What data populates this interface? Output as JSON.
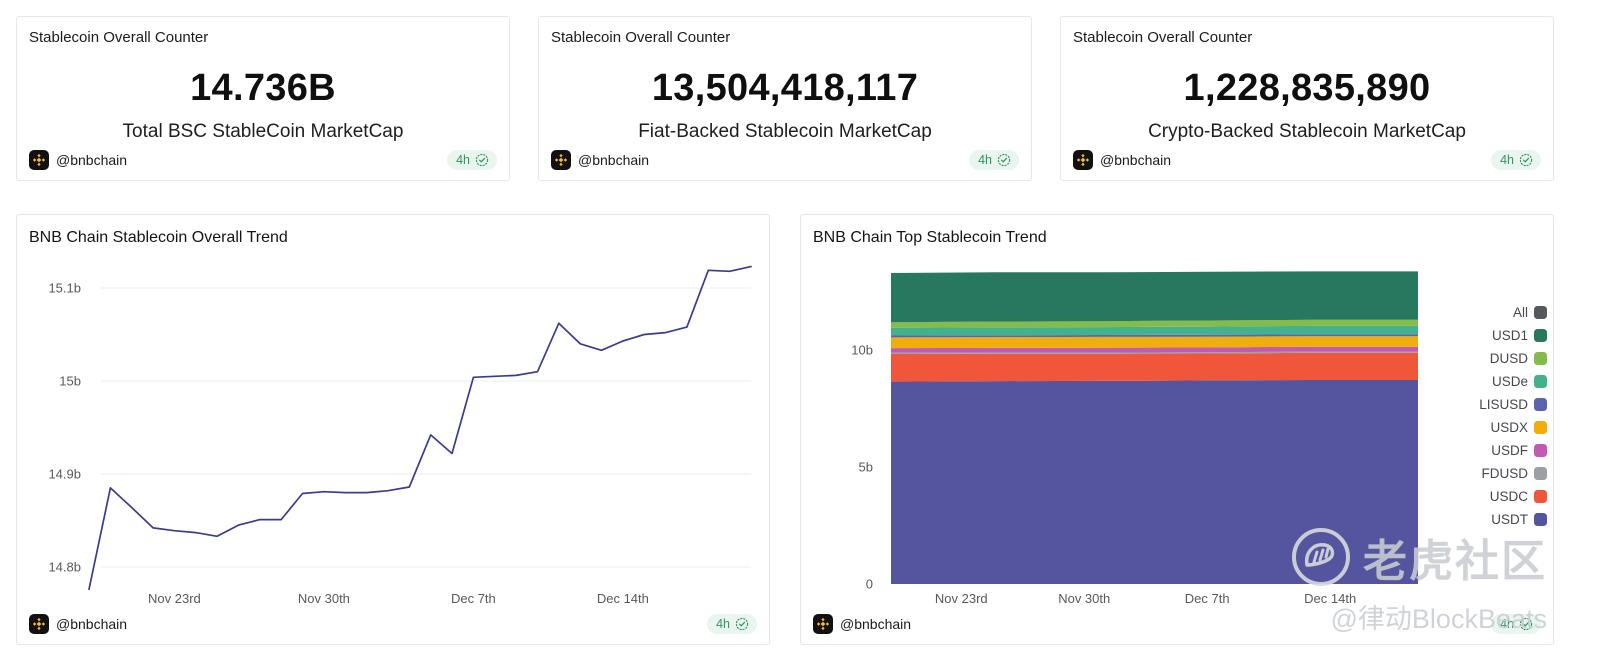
{
  "cards": [
    {
      "title": "Stablecoin Overall Counter",
      "value": "14.736B",
      "label": "Total BSC StableCoin MarketCap",
      "account": "@bnbchain",
      "badge": "4h"
    },
    {
      "title": "Stablecoin Overall Counter",
      "value": "13,504,418,117",
      "label": "Fiat-Backed Stablecoin MarketCap",
      "account": "@bnbchain",
      "badge": "4h"
    },
    {
      "title": "Stablecoin Overall Counter",
      "value": "1,228,835,890",
      "label": "Crypto-Backed Stablecoin MarketCap",
      "account": "@bnbchain",
      "badge": "4h"
    }
  ],
  "chart_cards": [
    {
      "account": "@bnbchain",
      "badge": "4h"
    },
    {
      "account": "@bnbchain",
      "badge": "4h"
    }
  ],
  "chart_data": [
    {
      "type": "line",
      "title": "BNB Chain Stablecoin Overall Trend",
      "unit": "billions USD",
      "x_tick_labels": [
        "Nov 23rd",
        "Nov 30th",
        "Dec 7th",
        "Dec 14th"
      ],
      "x_tick_indices": [
        4,
        11,
        18,
        25
      ],
      "y_tick_labels": [
        "15.1b",
        "15b",
        "14.9b",
        "14.8b"
      ],
      "y_ticks": [
        15.1,
        15.0,
        14.9,
        14.8
      ],
      "ylim": [
        14.75,
        15.15
      ],
      "values": [
        14.776,
        14.885,
        14.864,
        14.842,
        14.839,
        14.837,
        14.833,
        14.845,
        14.851,
        14.851,
        14.879,
        14.881,
        14.88,
        14.88,
        14.882,
        14.886,
        14.942,
        14.922,
        15.004,
        15.005,
        15.006,
        15.01,
        15.062,
        15.04,
        15.033,
        15.043,
        15.05,
        15.052,
        15.058,
        15.119,
        15.118,
        15.123
      ],
      "line_color": "#3b3b8f",
      "grid": true,
      "legend_position": "none"
    },
    {
      "type": "area",
      "title": "BNB Chain Top Stablecoin Trend",
      "unit": "billions USD",
      "x_tick_labels": [
        "Nov 23rd",
        "Nov 30th",
        "Dec 7th",
        "Dec 14th"
      ],
      "x_tick_days": [
        4,
        11,
        18,
        25
      ],
      "days_span": 30,
      "y_tick_labels": [
        "10b",
        "5b",
        "0"
      ],
      "y_ticks": [
        10,
        5,
        0
      ],
      "ylim": [
        0,
        14
      ],
      "grid": false,
      "legend_position": "right",
      "series": [
        {
          "name": "USDT",
          "color": "#55549e",
          "values": [
            8.65,
            8.67,
            8.68,
            8.7,
            8.72,
            8.72
          ]
        },
        {
          "name": "USDC",
          "color": "#f0563a",
          "values": [
            1.18,
            1.17,
            1.16,
            1.15,
            1.16,
            1.16
          ]
        },
        {
          "name": "FDUSD",
          "color": "#9aa0a6",
          "values": [
            0.05,
            0.05,
            0.05,
            0.05,
            0.05,
            0.05
          ]
        },
        {
          "name": "USDF",
          "color": "#c25ab5",
          "values": [
            0.2,
            0.2,
            0.21,
            0.21,
            0.21,
            0.21
          ]
        },
        {
          "name": "USDX",
          "color": "#f0ae0d",
          "values": [
            0.46,
            0.46,
            0.46,
            0.46,
            0.45,
            0.45
          ]
        },
        {
          "name": "LISUSD",
          "color": "#5b63ae",
          "values": [
            0.08,
            0.08,
            0.08,
            0.08,
            0.08,
            0.08
          ]
        },
        {
          "name": "USDe",
          "color": "#43b28c",
          "values": [
            0.33,
            0.34,
            0.34,
            0.35,
            0.36,
            0.36
          ]
        },
        {
          "name": "DUSD",
          "color": "#84bb4b",
          "values": [
            0.24,
            0.25,
            0.25,
            0.26,
            0.26,
            0.26
          ]
        },
        {
          "name": "USD1",
          "color": "#27785f",
          "values": [
            2.1,
            2.1,
            2.09,
            2.08,
            2.07,
            2.07
          ]
        }
      ],
      "legend": [
        {
          "label": "All",
          "color": "#55595e"
        },
        {
          "label": "USD1",
          "color": "#27785f"
        },
        {
          "label": "DUSD",
          "color": "#84bb4b"
        },
        {
          "label": "USDe",
          "color": "#43b28c"
        },
        {
          "label": "LISUSD",
          "color": "#5b63ae"
        },
        {
          "label": "USDX",
          "color": "#f0ae0d"
        },
        {
          "label": "USDF",
          "color": "#c25ab5"
        },
        {
          "label": "FDUSD",
          "color": "#9aa0a6"
        },
        {
          "label": "USDC",
          "color": "#f0563a"
        },
        {
          "label": "USDT",
          "color": "#55549e"
        }
      ]
    }
  ],
  "watermark": {
    "community_text": "老虎社区",
    "handle": "@律动BlockBeats"
  },
  "icons": {
    "account_avatar": "bnb-logo-icon",
    "badge_check": "verified-check-icon",
    "watermark_logo": "tiger-community-logo-icon"
  },
  "colors": {
    "bnb_gold": "#F3BA2F",
    "badge_green": "#2f9461",
    "badge_bg": "#e9f5ee",
    "axis_text": "#595959",
    "gridline": "#ececec",
    "card_border": "#e7e7e7",
    "watermark_gray": "#c9ced3"
  }
}
